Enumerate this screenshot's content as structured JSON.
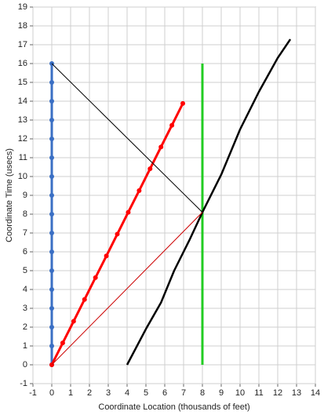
{
  "chart_data": {
    "type": "line",
    "xlabel": "Coordinate Location (thousands of feet)",
    "ylabel": "Coordinate Time (usecs)",
    "xlim": [
      -1,
      14
    ],
    "ylim": [
      -1,
      19
    ],
    "xticks": [
      -1,
      0,
      1,
      2,
      3,
      4,
      5,
      6,
      7,
      8,
      9,
      10,
      11,
      12,
      13,
      14
    ],
    "yticks": [
      -1,
      0,
      1,
      2,
      3,
      4,
      5,
      6,
      7,
      8,
      9,
      10,
      11,
      12,
      13,
      14,
      15,
      16,
      17,
      18,
      19
    ],
    "grid": true,
    "series": [
      {
        "color": "#3a6fc4",
        "width": 3,
        "markers": true,
        "x": [
          0,
          0,
          0,
          0,
          0,
          0,
          0,
          0,
          0,
          0,
          0,
          0,
          0,
          0,
          0,
          0,
          0
        ],
        "values": [
          0,
          1,
          2,
          3,
          4,
          5,
          6,
          7,
          8,
          9,
          10,
          11,
          12,
          13,
          14,
          15,
          16
        ]
      },
      {
        "color": "#ff0000",
        "width": 3,
        "markers": true,
        "x": [
          0,
          0.58,
          1.16,
          1.74,
          2.32,
          2.9,
          3.48,
          4.06,
          4.64,
          5.22,
          5.8,
          6.38,
          6.96
        ],
        "values": [
          0,
          1.16,
          2.31,
          3.47,
          4.63,
          5.78,
          6.94,
          8.1,
          9.25,
          10.41,
          11.57,
          12.72,
          13.88
        ]
      },
      {
        "color": "#22cc22",
        "width": 3,
        "markers": false,
        "x": [
          8,
          8
        ],
        "values": [
          0,
          16
        ]
      },
      {
        "color": "#000000",
        "width": 2.5,
        "markers": false,
        "x": [
          4,
          5,
          5.8,
          6.5,
          7.3,
          8,
          9,
          10,
          11,
          12,
          12.67
        ],
        "values": [
          0,
          1.9,
          3.3,
          5,
          6.6,
          8.1,
          10.1,
          12.5,
          14.5,
          16.3,
          17.29
        ]
      },
      {
        "color": "#000000",
        "width": 1,
        "markers": false,
        "x": [
          0,
          8
        ],
        "values": [
          16,
          8.1
        ]
      },
      {
        "color": "#cc0000",
        "width": 1,
        "markers": false,
        "x": [
          0,
          8
        ],
        "values": [
          0,
          8.1
        ]
      }
    ]
  }
}
